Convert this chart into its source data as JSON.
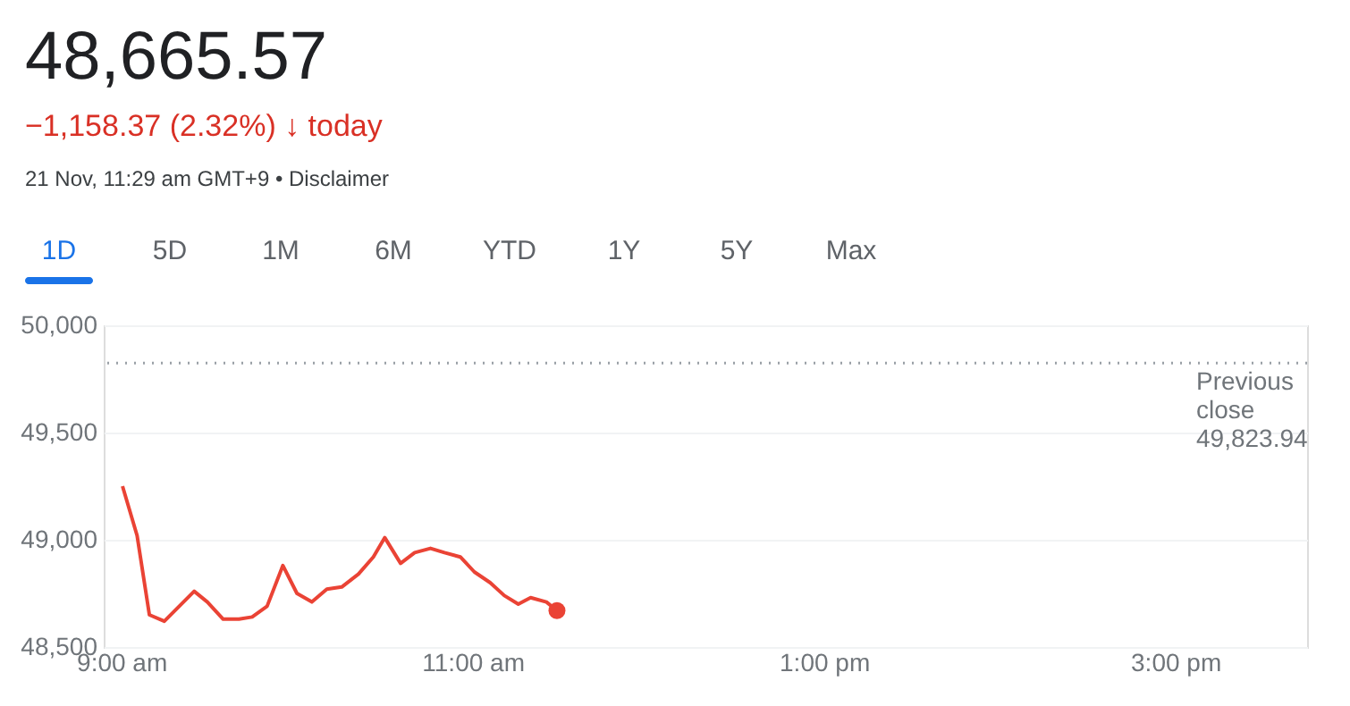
{
  "chart_data": {
    "type": "line",
    "title": "48,665.57",
    "subtitle": "−1,158.37 (2.32%) ↓ today",
    "annotations": [
      "21 Nov, 11:29 am GMT+9 • Disclaimer",
      "1D",
      "5D",
      "1M",
      "6M",
      "YTD",
      "1Y",
      "5Y",
      "Max"
    ],
    "series": [
      {
        "color": "#ea4335",
        "x": [
          9.007,
          9.09,
          9.16,
          9.245,
          9.415,
          9.49,
          9.58,
          9.67,
          9.745,
          9.83,
          9.92,
          10.0,
          10.085,
          10.17,
          10.255,
          10.35,
          10.435,
          10.5,
          10.59,
          10.67,
          10.76,
          10.84,
          10.93,
          11.01,
          11.1,
          11.18,
          11.26,
          11.33,
          11.42,
          11.48
        ],
        "values": [
          49250,
          49020,
          48650,
          48620,
          48760,
          48710,
          48630,
          48630,
          48640,
          48690,
          48880,
          48750,
          48710,
          48770,
          48780,
          48840,
          48920,
          49010,
          48890,
          48940,
          48960,
          48940,
          48920,
          48850,
          48800,
          48740,
          48700,
          48730,
          48710,
          48670
        ]
      },
      {
        "type": "scatter",
        "marker": "circle",
        "color": "#ea4335",
        "x": [
          11.48
        ],
        "values": [
          48670
        ]
      }
    ],
    "xlim": [
      8.9,
      15.75
    ],
    "xticks": [
      {
        "value": 9,
        "label": "9:00 am"
      },
      {
        "value": 11,
        "label": "11:00 am"
      },
      {
        "value": 13,
        "label": "1:00 pm"
      },
      {
        "value": 15,
        "label": "3:00 pm"
      }
    ],
    "ylim": [
      48500,
      50000
    ],
    "yticks": [
      {
        "value": 48500,
        "label": "48,500"
      },
      {
        "value": 49000,
        "label": "49,000"
      },
      {
        "value": 49500,
        "label": "49,500"
      },
      {
        "value": 50000,
        "label": "50,000"
      }
    ],
    "ref_lines": [
      {
        "axis": "y",
        "value": 49823.94,
        "label": "Previous close 49,823.94",
        "color": "#9aa0a6",
        "line_style": "dotted"
      }
    ],
    "grid": "y",
    "line_style": "solid"
  }
}
